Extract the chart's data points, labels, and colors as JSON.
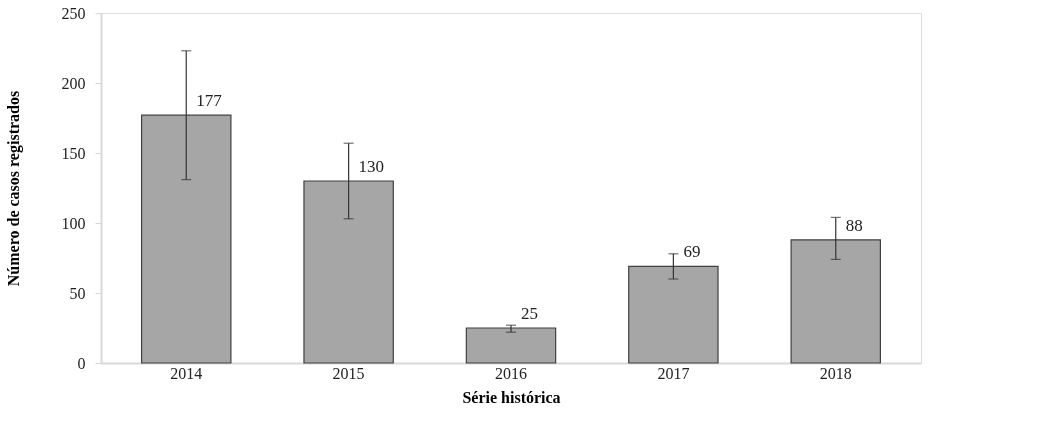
{
  "chart_data": {
    "type": "bar",
    "xlabel": "Série histórica",
    "ylabel": "Número de casos registrados",
    "categories": [
      "2014",
      "2015",
      "2016",
      "2017",
      "2018"
    ],
    "values": [
      177,
      130,
      25,
      69,
      88
    ],
    "errors": [
      [
        131,
        223
      ],
      [
        103,
        157
      ],
      [
        22,
        27
      ],
      [
        60,
        78
      ],
      [
        74,
        104
      ]
    ],
    "color": "#a6a6a6",
    "ylim": [
      0,
      250
    ],
    "yticks": [
      0,
      50,
      100,
      150,
      200,
      250
    ],
    "grid": false,
    "data_labels": true
  }
}
